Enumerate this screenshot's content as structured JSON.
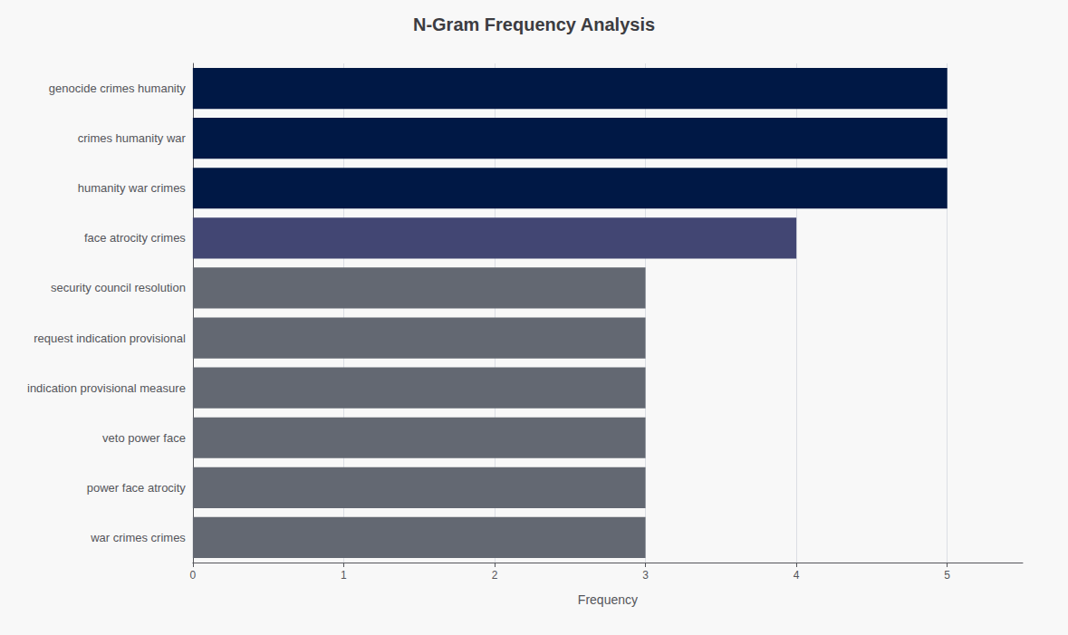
{
  "chart_data": {
    "type": "bar",
    "orientation": "horizontal",
    "title": "N-Gram Frequency Analysis",
    "categories": [
      "war crimes crimes",
      "power face atrocity",
      "veto power face",
      "indication provisional measure",
      "request indication provisional",
      "security council resolution",
      "face atrocity crimes",
      "humanity war crimes",
      "crimes humanity war",
      "genocide crimes humanity"
    ],
    "values": [
      3,
      3,
      3,
      3,
      3,
      3,
      4,
      5,
      5,
      5
    ],
    "colors": [
      "#636872",
      "#636872",
      "#636872",
      "#636872",
      "#636872",
      "#636872",
      "#424673",
      "#001845",
      "#001845",
      "#001845"
    ],
    "xlabel": "Frequency",
    "xlim": [
      0,
      5.5
    ],
    "xticks": [
      0,
      1,
      2,
      3,
      4,
      5
    ],
    "grid": true
  }
}
